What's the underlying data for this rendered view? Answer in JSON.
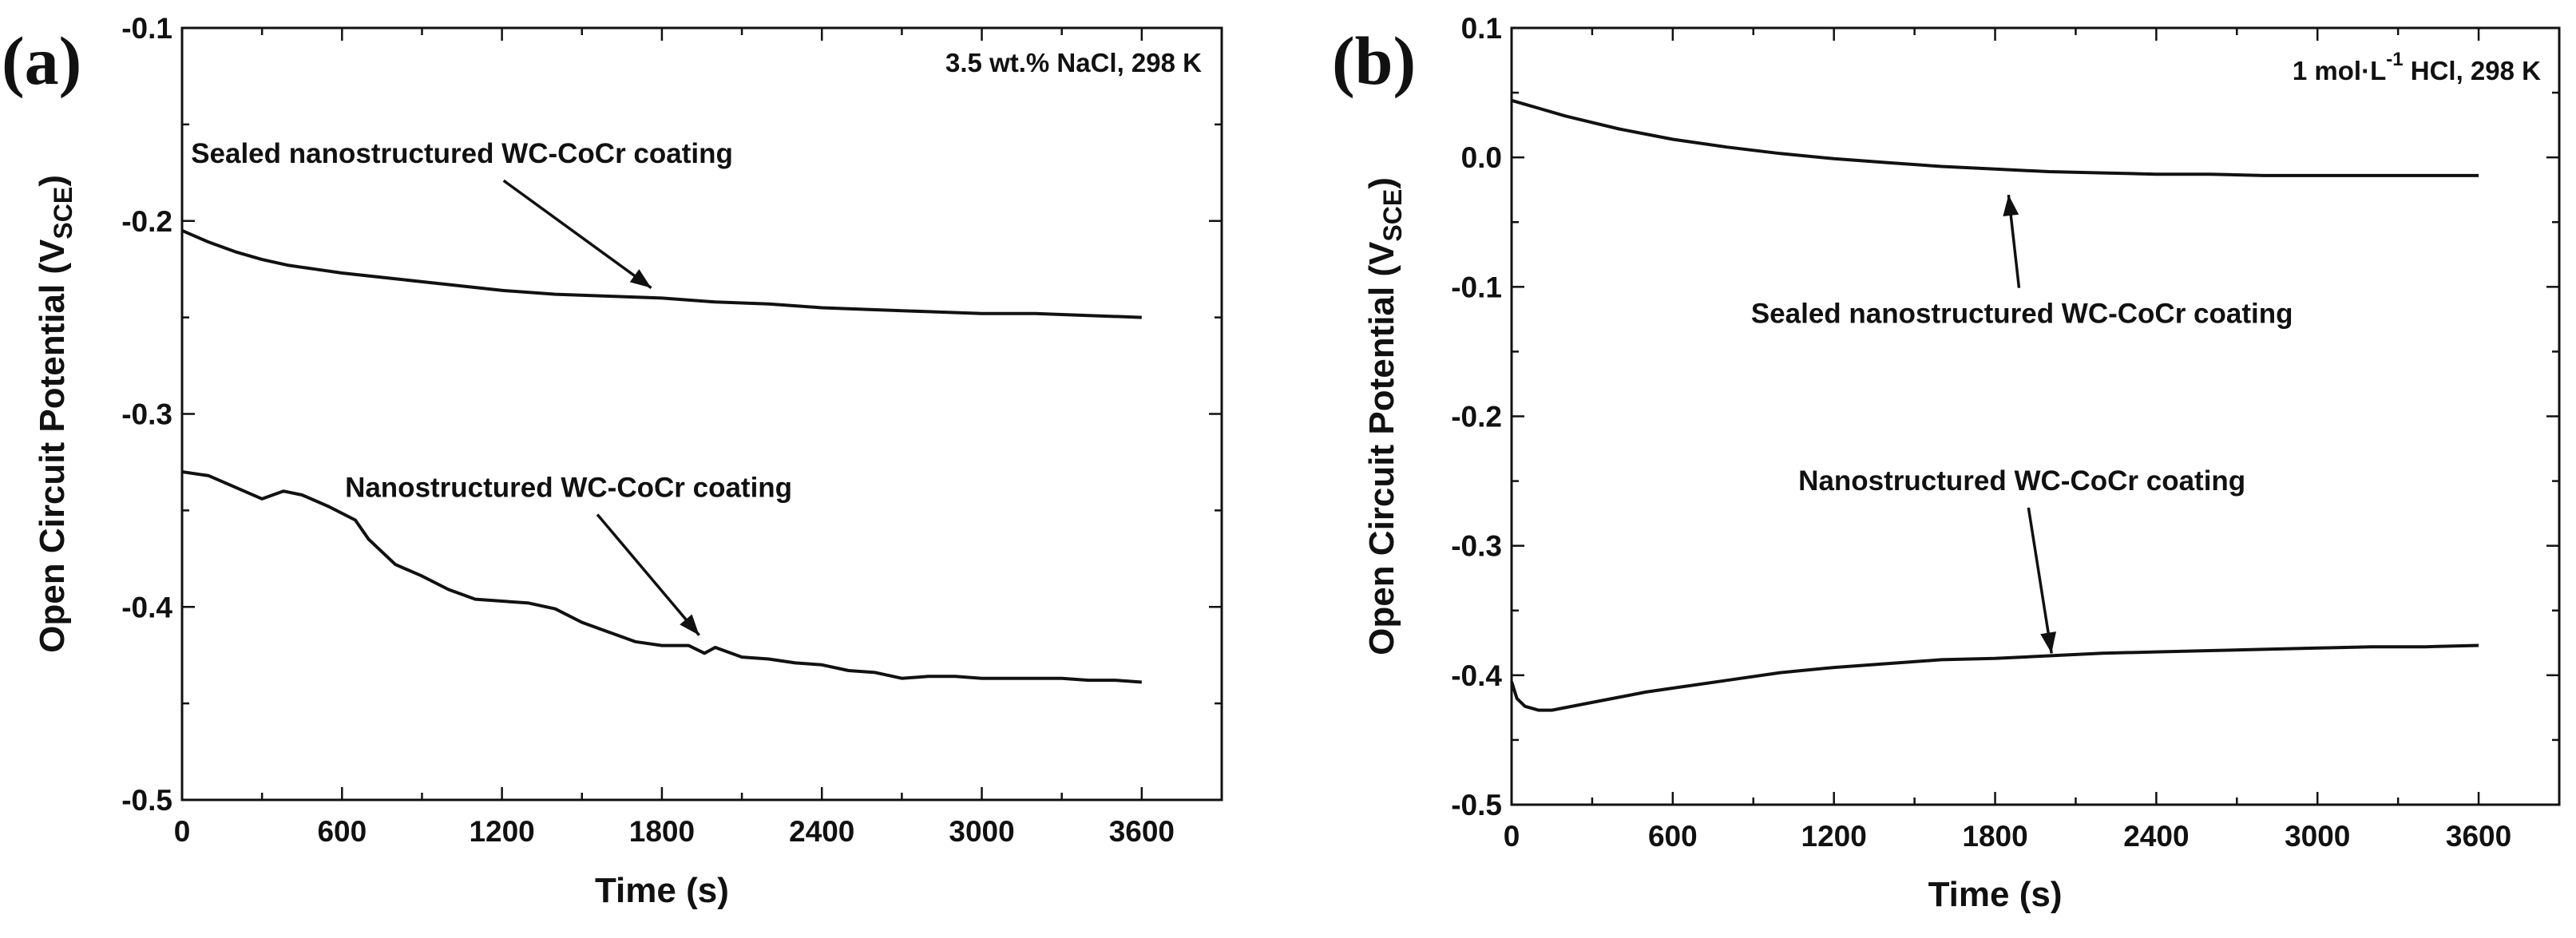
{
  "chart_data": [
    {
      "type": "line",
      "panel_label": "(a)",
      "condition": "3.5 wt.% NaCl, 298 K",
      "condition_sup": "",
      "condition_rest": "",
      "xlabel": "Time (s)",
      "ylabel_main": "Open Circuit Potential (V",
      "ylabel_sub": "SCE",
      "ylabel_close": ")",
      "xlim": [
        0,
        3900
      ],
      "ylim": [
        -0.5,
        -0.1
      ],
      "xticks": [
        0,
        600,
        1200,
        1800,
        2400,
        3000,
        3600
      ],
      "xtick_labels": [
        "0",
        "600",
        "1200",
        "1800",
        "2400",
        "3000",
        "3600"
      ],
      "yticks": [
        -0.5,
        -0.4,
        -0.3,
        -0.2,
        -0.1
      ],
      "ytick_labels": [
        "-0.5",
        "-0.4",
        "-0.3",
        "-0.2",
        "-0.1"
      ],
      "series": [
        {
          "name": "Sealed nanostructured WC-CoCr coating",
          "x": [
            0,
            100,
            200,
            300,
            400,
            500,
            600,
            800,
            1000,
            1200,
            1400,
            1600,
            1800,
            2000,
            2200,
            2400,
            2600,
            2800,
            3000,
            3200,
            3400,
            3600
          ],
          "y": [
            -0.205,
            -0.211,
            -0.216,
            -0.22,
            -0.223,
            -0.225,
            -0.227,
            -0.23,
            -0.233,
            -0.236,
            -0.238,
            -0.239,
            -0.24,
            -0.242,
            -0.243,
            -0.245,
            -0.246,
            -0.247,
            -0.248,
            -0.248,
            -0.249,
            -0.25
          ]
        },
        {
          "name": "Nanostructured WC-CoCr coating",
          "x": [
            0,
            100,
            200,
            300,
            380,
            450,
            550,
            650,
            700,
            800,
            900,
            1000,
            1100,
            1200,
            1300,
            1400,
            1500,
            1600,
            1700,
            1800,
            1900,
            1960,
            2000,
            2100,
            2200,
            2300,
            2400,
            2500,
            2600,
            2700,
            2800,
            2900,
            3000,
            3100,
            3200,
            3300,
            3400,
            3500,
            3600
          ],
          "y": [
            -0.33,
            -0.332,
            -0.338,
            -0.344,
            -0.34,
            -0.342,
            -0.348,
            -0.355,
            -0.365,
            -0.378,
            -0.384,
            -0.391,
            -0.396,
            -0.397,
            -0.398,
            -0.401,
            -0.408,
            -0.413,
            -0.418,
            -0.42,
            -0.42,
            -0.424,
            -0.421,
            -0.426,
            -0.427,
            -0.429,
            -0.43,
            -0.433,
            -0.434,
            -0.437,
            -0.436,
            -0.436,
            -0.437,
            -0.437,
            -0.437,
            -0.437,
            -0.438,
            -0.438,
            -0.439
          ]
        }
      ],
      "annotations": [
        {
          "text": "Sealed nanostructured WC-CoCr coating",
          "target_series": 0,
          "target_x": 1760,
          "target_y": -0.238,
          "text_x": 1050,
          "text_y": -0.17
        },
        {
          "text": "Nanostructured WC-CoCr coating",
          "target_series": 1,
          "target_x": 1940,
          "target_y": -0.418,
          "text_x": 1450,
          "text_y": -0.343
        }
      ]
    },
    {
      "type": "line",
      "panel_label": "(b)",
      "condition": "1 mol·L",
      "condition_sup": "-1",
      "condition_rest": " HCl, 298 K",
      "xlabel": "Time (s)",
      "ylabel_main": "Open Circuit Potential (V",
      "ylabel_sub": "SCE",
      "ylabel_close": ")",
      "xlim": [
        0,
        3900
      ],
      "ylim": [
        -0.5,
        0.1
      ],
      "xticks": [
        0,
        600,
        1200,
        1800,
        2400,
        3000,
        3600
      ],
      "xtick_labels": [
        "0",
        "600",
        "1200",
        "1800",
        "2400",
        "3000",
        "3600"
      ],
      "yticks": [
        -0.5,
        -0.4,
        -0.3,
        -0.2,
        -0.1,
        0.0,
        0.1
      ],
      "ytick_labels": [
        "-0.5",
        "-0.4",
        "-0.3",
        "-0.2",
        "-0.1",
        "0.0",
        "0.1"
      ],
      "series": [
        {
          "name": "Sealed nanostructured WC-CoCr coating",
          "x": [
            0,
            100,
            200,
            300,
            400,
            500,
            600,
            800,
            1000,
            1200,
            1400,
            1600,
            1800,
            2000,
            2200,
            2400,
            2600,
            2800,
            3000,
            3200,
            3400,
            3600
          ],
          "y": [
            0.044,
            0.038,
            0.032,
            0.027,
            0.022,
            0.018,
            0.014,
            0.008,
            0.003,
            -0.001,
            -0.004,
            -0.007,
            -0.009,
            -0.011,
            -0.012,
            -0.013,
            -0.013,
            -0.014,
            -0.014,
            -0.014,
            -0.014,
            -0.014
          ]
        },
        {
          "name": "Nanostructured WC-CoCr coating",
          "x": [
            0,
            20,
            50,
            100,
            150,
            200,
            300,
            400,
            500,
            600,
            800,
            1000,
            1200,
            1400,
            1600,
            1800,
            2000,
            2200,
            2400,
            2600,
            2800,
            3000,
            3200,
            3400,
            3600
          ],
          "y": [
            -0.405,
            -0.418,
            -0.424,
            -0.427,
            -0.427,
            -0.425,
            -0.421,
            -0.417,
            -0.413,
            -0.41,
            -0.404,
            -0.398,
            -0.394,
            -0.391,
            -0.388,
            -0.387,
            -0.385,
            -0.383,
            -0.382,
            -0.381,
            -0.38,
            -0.379,
            -0.378,
            -0.378,
            -0.377
          ]
        }
      ],
      "annotations": [
        {
          "text": "Sealed nanostructured WC-CoCr coating",
          "target_series": 0,
          "target_x": 1850,
          "target_y": -0.024,
          "text_x": 1900,
          "text_y": -0.128
        },
        {
          "text": "Nanostructured WC-CoCr coating",
          "target_series": 1,
          "target_x": 2010,
          "target_y": -0.388,
          "text_x": 1900,
          "text_y": -0.257
        }
      ]
    }
  ]
}
